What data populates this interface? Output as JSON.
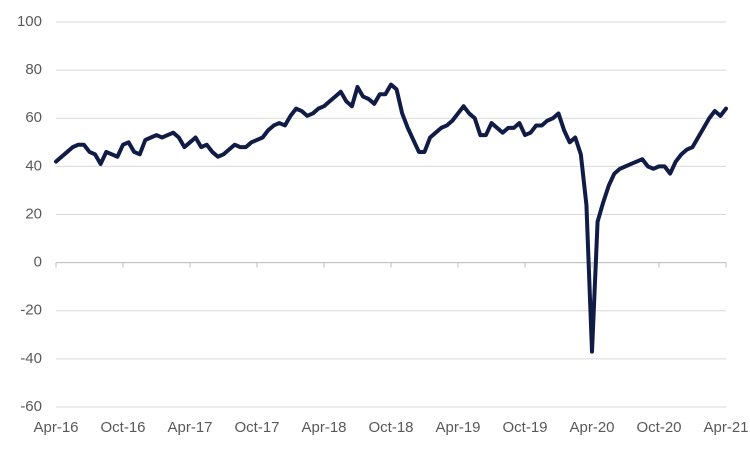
{
  "chart_data": {
    "type": "line",
    "categories": [
      "Apr-16",
      null,
      null,
      null,
      null,
      null,
      null,
      null,
      null,
      null,
      null,
      null,
      "Oct-16",
      null,
      null,
      null,
      null,
      null,
      null,
      null,
      null,
      null,
      null,
      null,
      "Apr-17",
      null,
      null,
      null,
      null,
      null,
      null,
      null,
      null,
      null,
      null,
      null,
      "Oct-17",
      null,
      null,
      null,
      null,
      null,
      null,
      null,
      null,
      null,
      null,
      null,
      "Apr-18",
      null,
      null,
      null,
      null,
      null,
      null,
      null,
      null,
      null,
      null,
      null,
      "Oct-18",
      null,
      null,
      null,
      null,
      null,
      null,
      null,
      null,
      null,
      null,
      null,
      "Apr-19",
      null,
      null,
      null,
      null,
      null,
      null,
      null,
      null,
      null,
      null,
      null,
      "Oct-19",
      null,
      null,
      null,
      null,
      null,
      null,
      null,
      null,
      null,
      null,
      null,
      "Apr-20",
      null,
      null,
      null,
      null,
      null,
      null,
      null,
      null,
      null,
      null,
      null,
      "Oct-20",
      null,
      null,
      null,
      null,
      null,
      null,
      null,
      null,
      null,
      null,
      null,
      "Apr-21"
    ],
    "values": [
      42,
      44,
      46,
      48,
      49,
      49,
      46,
      45,
      41,
      46,
      45,
      44,
      49,
      50,
      46,
      45,
      51,
      52,
      53,
      52,
      53,
      54,
      52,
      48,
      50,
      52,
      48,
      49,
      46,
      44,
      45,
      47,
      49,
      48,
      48,
      50,
      51,
      52,
      55,
      57,
      58,
      57,
      61,
      64,
      63,
      61,
      62,
      64,
      65,
      67,
      69,
      71,
      67,
      65,
      73,
      69,
      68,
      66,
      70,
      70,
      74,
      72,
      62,
      56,
      51,
      46,
      46,
      52,
      54,
      56,
      57,
      59,
      62,
      65,
      62,
      60,
      53,
      53,
      58,
      56,
      54,
      56,
      56,
      58,
      53,
      54,
      57,
      57,
      59,
      60,
      62,
      55,
      50,
      52,
      45,
      24,
      -37,
      17,
      25,
      32,
      37,
      39,
      40,
      41,
      42,
      43,
      40,
      39,
      40,
      40,
      37,
      42,
      45,
      47,
      48,
      52,
      56,
      60,
      63,
      61,
      64
    ],
    "color": "#101c45",
    "ylim": [
      -60,
      100
    ],
    "yticks": [
      -60,
      -40,
      -20,
      0,
      20,
      40,
      60,
      80,
      100
    ],
    "grid": true
  }
}
